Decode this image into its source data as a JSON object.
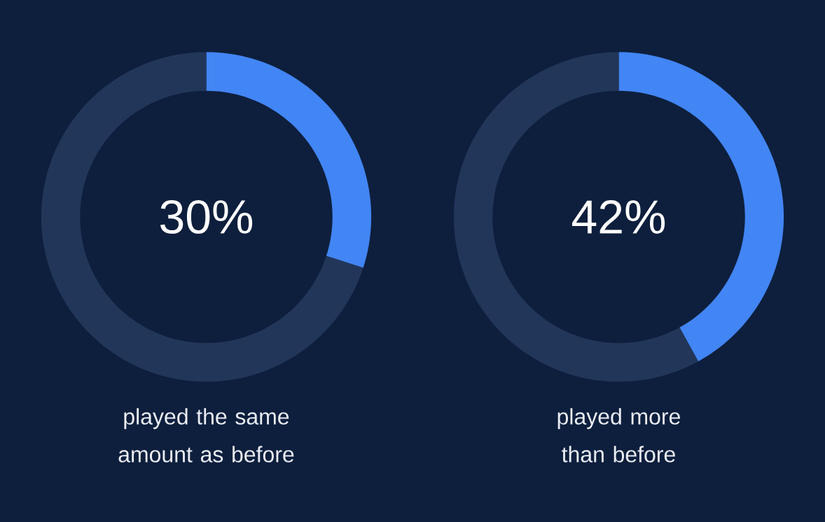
{
  "chart_data": [
    {
      "type": "donut",
      "categories": [
        null,
        null
      ],
      "values": [
        30,
        70
      ],
      "colors": [
        "#4285f4",
        "#22365a"
      ],
      "annotations": [
        "30%"
      ],
      "title": "played the same amount as before"
    },
    {
      "type": "donut",
      "categories": [
        null,
        null
      ],
      "values": [
        42,
        58
      ],
      "colors": [
        "#4285f4",
        "#22365a"
      ],
      "annotations": [
        "42%"
      ],
      "title": "played more than before"
    }
  ]
}
